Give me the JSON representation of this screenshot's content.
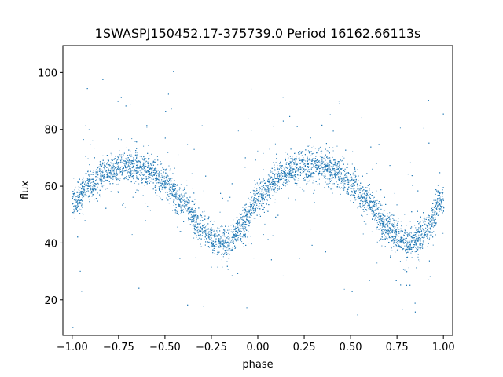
{
  "chart_data": {
    "type": "scatter",
    "title": "1SWASPJ150452.17-375739.0 Period 16162.66113s",
    "xlabel": "phase",
    "ylabel": "flux",
    "xlim": [
      -1.05,
      1.05
    ],
    "ylim": [
      7.5,
      109.5
    ],
    "xticks": [
      -1.0,
      -0.75,
      -0.5,
      -0.25,
      0.0,
      0.25,
      0.5,
      0.75,
      1.0
    ],
    "xtick_labels": [
      "−1.00",
      "−0.75",
      "−0.50",
      "−0.25",
      "0.00",
      "0.25",
      "0.50",
      "0.75",
      "1.00"
    ],
    "yticks": [
      20,
      40,
      60,
      80,
      100
    ],
    "ytick_labels": [
      "20",
      "40",
      "60",
      "80",
      "100"
    ],
    "grid": false,
    "marker_color": "#1f77b4",
    "curve": {
      "description_of_phased_light_curve": "",
      "phase": [
        -1.0,
        -0.9,
        -0.8,
        -0.7,
        -0.6,
        -0.5,
        -0.4,
        -0.3,
        -0.2,
        -0.15,
        -0.1,
        0.0,
        0.1,
        0.2,
        0.3,
        0.4,
        0.5,
        0.6,
        0.7,
        0.8,
        0.85,
        0.9,
        1.0
      ],
      "flux": [
        55,
        61,
        65.5,
        67.5,
        66,
        61,
        54,
        45,
        40,
        41,
        45,
        56,
        63,
        66.5,
        68,
        66,
        61,
        54,
        45,
        40,
        41,
        45,
        56
      ],
      "band_halfwidth": 5
    }
  }
}
